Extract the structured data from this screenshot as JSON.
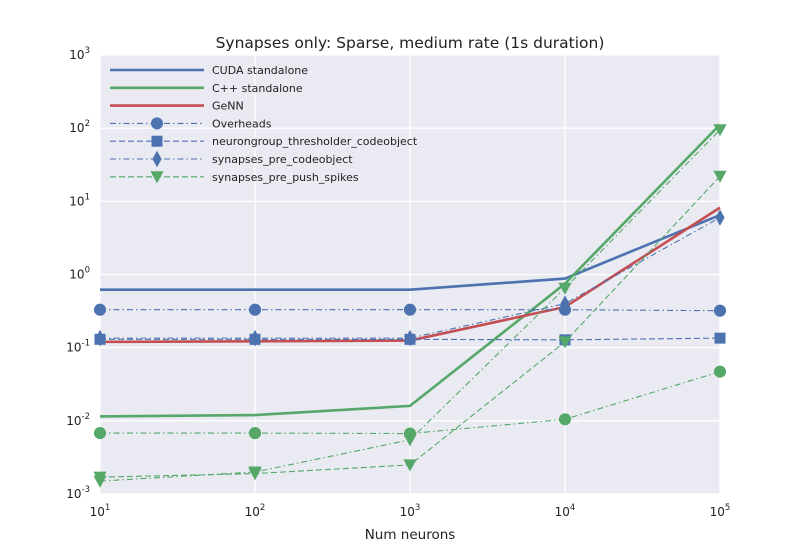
{
  "chart_data": {
    "type": "line",
    "title": "Synapses only: Sparse, medium rate (1s duration)",
    "xlabel": "Num neurons",
    "ylabel": "",
    "xscale": "log",
    "yscale": "log",
    "xlim": [
      10,
      100000
    ],
    "ylim": [
      0.001,
      1000
    ],
    "xticks": [
      {
        "base": "10",
        "exp": "1"
      },
      {
        "base": "10",
        "exp": "2"
      },
      {
        "base": "10",
        "exp": "3"
      },
      {
        "base": "10",
        "exp": "4"
      },
      {
        "base": "10",
        "exp": "5"
      }
    ],
    "yticks": [
      {
        "base": "10",
        "exp": "3"
      },
      {
        "base": "10",
        "exp": "2"
      },
      {
        "base": "10",
        "exp": "1"
      },
      {
        "base": "10",
        "exp": "0"
      },
      {
        "base": "10",
        "exp": "-1"
      },
      {
        "base": "10",
        "exp": "-2"
      },
      {
        "base": "10",
        "exp": "-3"
      }
    ],
    "grid": true,
    "legend_position": "top-left",
    "x": [
      10,
      100,
      1000,
      10000,
      100000
    ],
    "series": [
      {
        "name": "CUDA standalone",
        "color": "#4c72b0",
        "style": "solid",
        "marker": "none",
        "values": [
          0.62,
          0.62,
          0.62,
          0.88,
          6.5
        ]
      },
      {
        "name": "C++ standalone",
        "color": "#55a868",
        "style": "solid",
        "marker": "none",
        "values": [
          0.0115,
          0.012,
          0.016,
          0.75,
          112
        ]
      },
      {
        "name": "GeNN",
        "color": "#c44e52",
        "style": "solid",
        "marker": "none",
        "values": [
          0.12,
          0.122,
          0.125,
          0.36,
          8.2
        ]
      },
      {
        "name": "Overheads",
        "color": "#4c72b0",
        "style": "dashdot",
        "marker": "circle",
        "values": [
          0.33,
          0.33,
          0.33,
          0.33,
          0.32
        ]
      },
      {
        "name": "neurongroup_thresholder_codeobject",
        "color": "#4c72b0",
        "style": "dashed",
        "marker": "square",
        "values": [
          0.13,
          0.13,
          0.13,
          0.128,
          0.135
        ]
      },
      {
        "name": "synapses_pre_codeobject",
        "color": "#4c72b0",
        "style": "dashdot",
        "marker": "diamond",
        "values": [
          0.135,
          0.135,
          0.135,
          0.4,
          6.0
        ]
      },
      {
        "name": "synapses_pre_push_spikes",
        "color": "#55a868",
        "style": "dashed",
        "marker": "triangle-down",
        "values": [
          0.0017,
          0.0019,
          0.0025,
          0.12,
          22
        ]
      },
      {
        "name": "",
        "color": "#55a868",
        "style": "dashdot",
        "marker": "circle",
        "values": [
          0.0068,
          0.0068,
          0.0067,
          0.0105,
          0.047
        ]
      },
      {
        "name": "",
        "color": "#55a868",
        "style": "dashdot",
        "marker": "triangle-down",
        "values": [
          0.0015,
          0.002,
          0.0055,
          0.65,
          95
        ]
      }
    ]
  }
}
